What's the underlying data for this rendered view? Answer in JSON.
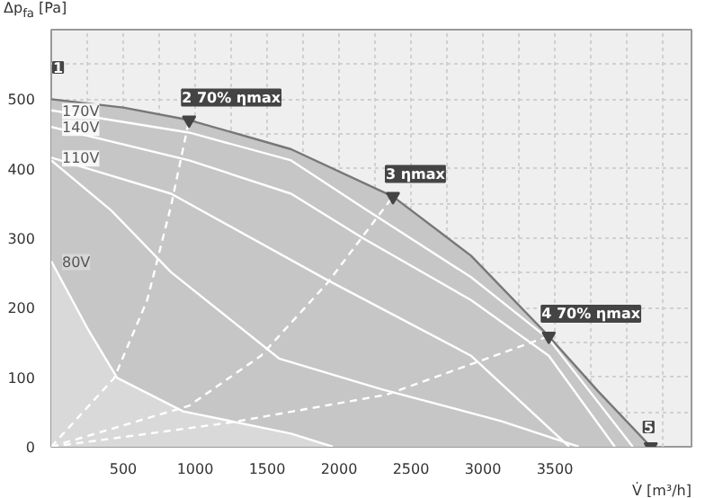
{
  "chart_data": {
    "type": "line",
    "xlabel": "V̇ [m³/h]",
    "ylabel": "Δp$_{fa}$ [Pa]",
    "xlim": [
      0,
      4450
    ],
    "ylim": [
      0,
      600
    ],
    "xticks": [
      {
        "value": 0,
        "label": null
      },
      {
        "value": 250,
        "label": null
      },
      500,
      {
        "value": 750,
        "label": null
      },
      1000,
      {
        "value": 1250,
        "label": null
      },
      1500,
      {
        "value": 1750,
        "label": null
      },
      2000,
      {
        "value": 2250,
        "label": null
      },
      2500,
      {
        "value": 2750,
        "label": null
      },
      3000,
      {
        "value": 3250,
        "label": null
      },
      3500,
      {
        "value": 3750,
        "label": null
      },
      {
        "value": 4000,
        "label": null
      },
      {
        "value": 4250,
        "label": null
      }
    ],
    "yticks": [
      0,
      {
        "value": 50,
        "label": null
      },
      100,
      {
        "value": 150,
        "label": null
      },
      200,
      {
        "value": 250,
        "label": null
      },
      300,
      {
        "value": 350,
        "label": null
      },
      400,
      {
        "value": 450,
        "label": null
      },
      500,
      {
        "value": 550,
        "label": null
      }
    ],
    "grid": true,
    "legend": "left",
    "line_style": "solid",
    "marker": "none",
    "series": [
      {
        "type": "area",
        "color": "#c6c6c6",
        "x": [
          0,
          500,
          958,
          1667,
          2375,
          2917,
          3458,
          3800,
          4167
        ],
        "values": [
          500,
          488,
          470,
          428,
          360,
          275,
          159,
          80,
          0
        ]
      },
      {
        "name": "170V",
        "color": "#ffffff",
        "x": [
          0,
          958,
          1667,
          2167,
          2917,
          3458,
          4042
        ],
        "values": [
          484,
          452,
          412,
          344,
          244,
          155,
          0
        ]
      },
      {
        "name": "140V",
        "color": "#ffffff",
        "x": [
          0,
          958,
          1667,
          2167,
          2917,
          3458,
          3917
        ],
        "values": [
          460,
          412,
          364,
          300,
          211,
          131,
          0
        ]
      },
      {
        "name": "110V",
        "color": "#ffffff",
        "x": [
          0,
          833,
          1917,
          2917,
          3600
        ],
        "values": [
          416,
          364,
          240,
          131,
          0
        ]
      },
      {
        "color": "#ffffff",
        "x": [
          0,
          417,
          833,
          1583,
          2292,
          3125,
          3667
        ],
        "values": [
          412,
          340,
          251,
          127,
          83,
          37,
          0
        ]
      },
      {
        "name": "80V",
        "type": "area",
        "color": "#d9d9d9",
        "x": [
          0,
          250,
          458,
          917,
          1667,
          1958
        ],
        "values": [
          267,
          171,
          99,
          51,
          19,
          0
        ]
      },
      {
        "color": "#ffffff",
        "line_style": "dashed",
        "x": [
          0,
          438,
          667,
          833,
          958
        ],
        "values": [
          0,
          99,
          211,
          347,
          470
        ]
      },
      {
        "color": "#ffffff",
        "line_style": "dashed",
        "x": [
          0,
          958,
          1458,
          1917,
          2375
        ],
        "values": [
          0,
          59,
          131,
          235,
          360
        ]
      },
      {
        "color": "#ffffff",
        "line_style": "dashed",
        "x": [
          0,
          1250,
          2333,
          3458
        ],
        "values": [
          0,
          35,
          75,
          159
        ]
      }
    ],
    "annotations": [
      "1",
      {
        "text": "2 70% ηmax",
        "x": 958,
        "y": 470
      },
      {
        "text": "3 ηmax",
        "x": 2375,
        "y": 360
      },
      {
        "text": "4 70% ηmax",
        "x": 3458,
        "y": 159
      },
      {
        "text": "5",
        "x": 4167,
        "y": 0
      }
    ]
  }
}
